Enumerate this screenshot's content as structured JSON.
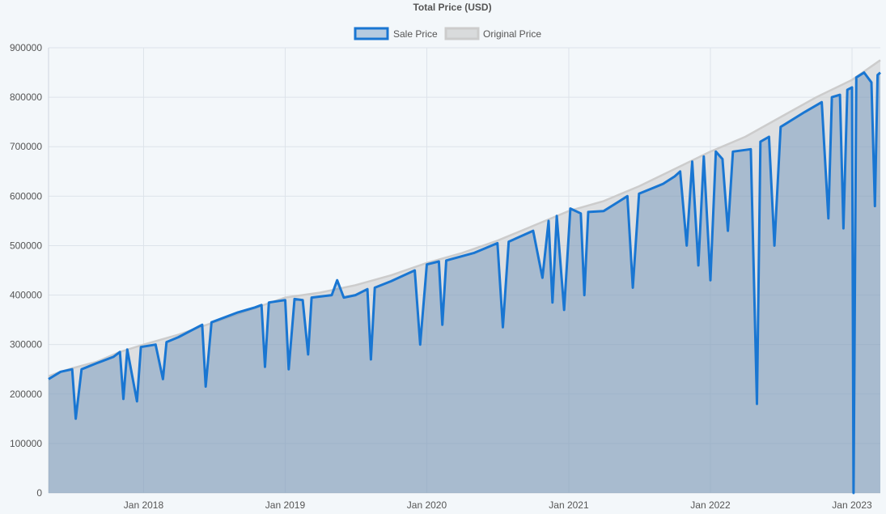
{
  "chart_data": {
    "type": "area",
    "title": "Total Price (USD)",
    "xlabel": "",
    "ylabel": "",
    "ylim": [
      0,
      900000
    ],
    "y_ticks": [
      0,
      100000,
      200000,
      300000,
      400000,
      500000,
      600000,
      700000,
      800000,
      900000
    ],
    "x_range": [
      "2017-05-01",
      "2023-03-15"
    ],
    "x_tick_labels": [
      {
        "date": "2018-01-01",
        "label": "Jan 2018"
      },
      {
        "date": "2019-01-01",
        "label": "Jan 2019"
      },
      {
        "date": "2020-01-01",
        "label": "Jan 2020"
      },
      {
        "date": "2021-01-01",
        "label": "Jan 2021"
      },
      {
        "date": "2022-01-01",
        "label": "Jan 2022"
      },
      {
        "date": "2023-01-01",
        "label": "Jan 2023"
      }
    ],
    "grid": true,
    "legend_position": "top-center",
    "series": [
      {
        "name": "Sale Price",
        "color": "#1976d2",
        "fill": "rgba(70,120,175,0.35)",
        "points": [
          [
            "2017-05-01",
            230000
          ],
          [
            "2017-06-01",
            245000
          ],
          [
            "2017-07-01",
            250000
          ],
          [
            "2017-07-10",
            150000
          ],
          [
            "2017-07-25",
            250000
          ],
          [
            "2017-09-01",
            262000
          ],
          [
            "2017-10-15",
            275000
          ],
          [
            "2017-11-01",
            285000
          ],
          [
            "2017-11-10",
            190000
          ],
          [
            "2017-11-20",
            290000
          ],
          [
            "2017-12-15",
            185000
          ],
          [
            "2017-12-25",
            295000
          ],
          [
            "2018-02-01",
            300000
          ],
          [
            "2018-02-20",
            230000
          ],
          [
            "2018-03-01",
            305000
          ],
          [
            "2018-04-01",
            315000
          ],
          [
            "2018-06-01",
            340000
          ],
          [
            "2018-06-10",
            215000
          ],
          [
            "2018-06-25",
            345000
          ],
          [
            "2018-09-01",
            365000
          ],
          [
            "2018-10-15",
            375000
          ],
          [
            "2018-11-01",
            380000
          ],
          [
            "2018-11-10",
            255000
          ],
          [
            "2018-11-20",
            385000
          ],
          [
            "2019-01-01",
            390000
          ],
          [
            "2019-01-10",
            250000
          ],
          [
            "2019-01-25",
            392000
          ],
          [
            "2019-02-15",
            390000
          ],
          [
            "2019-03-01",
            280000
          ],
          [
            "2019-03-10",
            395000
          ],
          [
            "2019-05-01",
            400000
          ],
          [
            "2019-05-15",
            430000
          ],
          [
            "2019-06-01",
            395000
          ],
          [
            "2019-07-01",
            400000
          ],
          [
            "2019-08-01",
            412000
          ],
          [
            "2019-08-10",
            270000
          ],
          [
            "2019-08-20",
            415000
          ],
          [
            "2019-10-01",
            428000
          ],
          [
            "2019-12-01",
            450000
          ],
          [
            "2019-12-15",
            300000
          ],
          [
            "2020-01-01",
            462000
          ],
          [
            "2020-02-01",
            468000
          ],
          [
            "2020-02-10",
            340000
          ],
          [
            "2020-02-20",
            470000
          ],
          [
            "2020-05-01",
            485000
          ],
          [
            "2020-07-01",
            505000
          ],
          [
            "2020-07-15",
            335000
          ],
          [
            "2020-07-30",
            508000
          ],
          [
            "2020-10-01",
            530000
          ],
          [
            "2020-10-25",
            435000
          ],
          [
            "2020-11-10",
            550000
          ],
          [
            "2020-11-20",
            385000
          ],
          [
            "2020-12-01",
            560000
          ],
          [
            "2020-12-20",
            370000
          ],
          [
            "2021-01-05",
            575000
          ],
          [
            "2021-02-01",
            565000
          ],
          [
            "2021-02-10",
            400000
          ],
          [
            "2021-02-20",
            568000
          ],
          [
            "2021-04-01",
            570000
          ],
          [
            "2021-06-01",
            600000
          ],
          [
            "2021-06-15",
            415000
          ],
          [
            "2021-07-01",
            605000
          ],
          [
            "2021-08-01",
            615000
          ],
          [
            "2021-09-01",
            625000
          ],
          [
            "2021-10-01",
            640000
          ],
          [
            "2021-10-15",
            650000
          ],
          [
            "2021-11-01",
            500000
          ],
          [
            "2021-11-15",
            670000
          ],
          [
            "2021-12-01",
            460000
          ],
          [
            "2021-12-15",
            680000
          ],
          [
            "2022-01-01",
            430000
          ],
          [
            "2022-01-15",
            690000
          ],
          [
            "2022-02-01",
            675000
          ],
          [
            "2022-02-15",
            530000
          ],
          [
            "2022-02-28",
            690000
          ],
          [
            "2022-04-15",
            695000
          ],
          [
            "2022-05-01",
            180000
          ],
          [
            "2022-05-10",
            710000
          ],
          [
            "2022-06-01",
            720000
          ],
          [
            "2022-06-15",
            500000
          ],
          [
            "2022-07-01",
            740000
          ],
          [
            "2022-08-01",
            755000
          ],
          [
            "2022-09-01",
            770000
          ],
          [
            "2022-10-15",
            790000
          ],
          [
            "2022-11-01",
            555000
          ],
          [
            "2022-11-10",
            800000
          ],
          [
            "2022-12-01",
            805000
          ],
          [
            "2022-12-10",
            535000
          ],
          [
            "2022-12-20",
            815000
          ],
          [
            "2023-01-01",
            820000
          ],
          [
            "2023-01-05",
            0
          ],
          [
            "2023-01-12",
            840000
          ],
          [
            "2023-02-01",
            850000
          ],
          [
            "2023-02-20",
            830000
          ],
          [
            "2023-03-01",
            580000
          ],
          [
            "2023-03-08",
            845000
          ],
          [
            "2023-03-15",
            850000
          ]
        ]
      },
      {
        "name": "Original Price",
        "color": "#cccccc",
        "fill": "rgba(200,200,200,0.5)",
        "points": [
          [
            "2017-05-01",
            236000
          ],
          [
            "2017-06-01",
            245000
          ],
          [
            "2017-07-01",
            252000
          ],
          [
            "2017-09-01",
            265000
          ],
          [
            "2017-11-01",
            285000
          ],
          [
            "2018-01-01",
            300000
          ],
          [
            "2018-04-01",
            320000
          ],
          [
            "2018-07-01",
            345000
          ],
          [
            "2018-10-01",
            370000
          ],
          [
            "2019-01-01",
            395000
          ],
          [
            "2019-04-01",
            405000
          ],
          [
            "2019-07-01",
            420000
          ],
          [
            "2019-10-01",
            440000
          ],
          [
            "2020-01-01",
            465000
          ],
          [
            "2020-04-01",
            485000
          ],
          [
            "2020-07-01",
            510000
          ],
          [
            "2020-10-01",
            540000
          ],
          [
            "2021-01-01",
            570000
          ],
          [
            "2021-04-01",
            590000
          ],
          [
            "2021-07-01",
            620000
          ],
          [
            "2021-10-01",
            655000
          ],
          [
            "2022-01-01",
            690000
          ],
          [
            "2022-04-01",
            720000
          ],
          [
            "2022-07-01",
            760000
          ],
          [
            "2022-10-01",
            800000
          ],
          [
            "2023-01-01",
            835000
          ],
          [
            "2023-03-15",
            875000
          ]
        ]
      }
    ]
  }
}
